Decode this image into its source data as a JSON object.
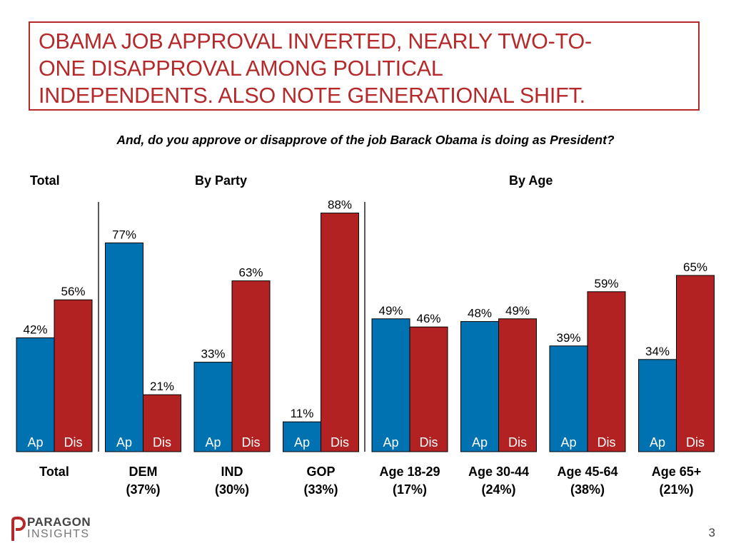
{
  "header": {
    "title_lines": [
      "OBAMA JOB APPROVAL INVERTED, NEARLY TWO-TO-",
      "ONE DISAPPROVAL AMONG POLITICAL",
      "INDEPENDENTS. ALSO NOTE GENERATIONAL SHIFT."
    ],
    "question": "And, do you approve or disapprove of the job Barack Obama is doing as President?"
  },
  "group_labels": {
    "total": "Total",
    "party": "By Party",
    "age": "By Age"
  },
  "chart_data": {
    "type": "bar",
    "title": "OBAMA JOB APPROVAL INVERTED, NEARLY TWO-TO-ONE DISAPPROVAL AMONG POLITICAL INDEPENDENTS. ALSO NOTE GENERATIONAL SHIFT.",
    "subtitle": "And, do you approve or disapprove of the job Barack Obama is doing as President?",
    "categories": [
      [
        "Total"
      ],
      [
        "DEM",
        "(37%)"
      ],
      [
        "IND",
        "(30%)"
      ],
      [
        "GOP",
        "(33%)"
      ],
      [
        "Age 18-29",
        "(17%)"
      ],
      [
        "Age 30-44",
        "(24%)"
      ],
      [
        "Age 45-64",
        "(38%)"
      ],
      [
        "Age 65+",
        "(21%)"
      ]
    ],
    "series": [
      {
        "name": "Ap",
        "color": "#0072b2",
        "values": [
          42,
          77,
          33,
          11,
          49,
          48,
          39,
          34
        ]
      },
      {
        "name": "Dis",
        "color": "#b22222",
        "values": [
          56,
          21,
          63,
          88,
          46,
          49,
          59,
          65
        ]
      }
    ],
    "value_suffix": "%",
    "ylim": [
      0,
      100
    ],
    "grid": false,
    "legend": "in-bar labels"
  },
  "footer": {
    "logo_line1": "PARAGON",
    "logo_line2": "INSIGHTS",
    "page_number": "3"
  }
}
